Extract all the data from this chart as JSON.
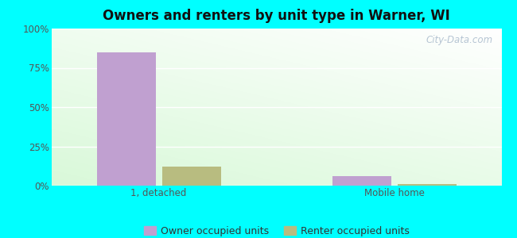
{
  "title": "Owners and renters by unit type in Warner, WI",
  "categories": [
    "1, detached",
    "Mobile home"
  ],
  "owner_values": [
    85,
    6
  ],
  "renter_values": [
    12,
    1
  ],
  "owner_color": "#c0a0d0",
  "renter_color": "#b8bc80",
  "ylim": [
    0,
    100
  ],
  "yticks": [
    0,
    25,
    50,
    75,
    100
  ],
  "ytick_labels": [
    "0%",
    "25%",
    "50%",
    "75%",
    "100%"
  ],
  "outer_bg": "#00ffff",
  "legend_owner": "Owner occupied units",
  "legend_renter": "Renter occupied units",
  "bar_width": 0.55,
  "watermark": "City-Data.com",
  "group_positions": [
    1.0,
    3.2
  ],
  "xlim": [
    0.0,
    4.2
  ]
}
